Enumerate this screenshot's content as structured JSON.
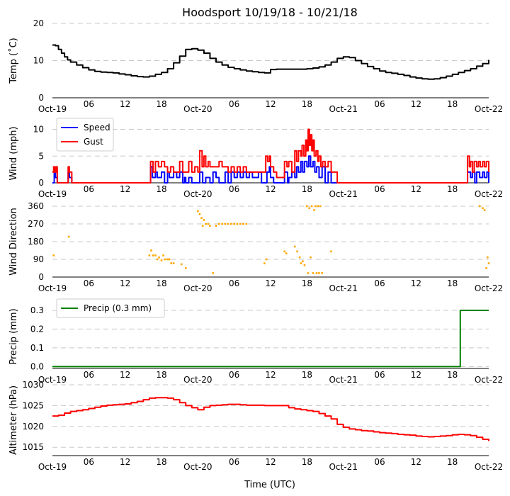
{
  "title": "Hoodsport 10/19/18 - 10/21/18",
  "xlabel": "Time (UTC)",
  "chart_data": [
    {
      "type": "line",
      "ylabel": "Temp (˚C)",
      "ylim": [
        0,
        20
      ],
      "yticks": [
        0,
        10,
        20
      ],
      "xlim": [
        0,
        72
      ],
      "xticks": [
        "Oct-19",
        "06",
        "12",
        "18",
        "Oct-20",
        "06",
        "12",
        "18",
        "Oct-21",
        "06",
        "12",
        "18",
        "Oct-22"
      ],
      "grid": true,
      "series": [
        {
          "color": "#000000",
          "step": true,
          "x": [
            0,
            0.5,
            1,
            1.5,
            2,
            2.5,
            3,
            4,
            5,
            6,
            7,
            8,
            9,
            10,
            11,
            12,
            13,
            14,
            15,
            16,
            17,
            18,
            19,
            20,
            21,
            22,
            23,
            24,
            25,
            26,
            27,
            28,
            29,
            30,
            31,
            32,
            33,
            34,
            35,
            36,
            37,
            38,
            39,
            40,
            41,
            42,
            43,
            44,
            45,
            46,
            47,
            48,
            49,
            50,
            51,
            52,
            53,
            54,
            55,
            56,
            57,
            58,
            59,
            60,
            61,
            62,
            63,
            64,
            65,
            66,
            67,
            68,
            69,
            70,
            71,
            72
          ],
          "y": [
            14.2,
            14,
            13,
            12,
            11,
            10.2,
            9.6,
            8.8,
            8.1,
            7.5,
            7.1,
            6.9,
            6.8,
            6.7,
            6.4,
            6.2,
            5.9,
            5.7,
            5.6,
            5.8,
            6.3,
            6.8,
            7.8,
            9.4,
            11.2,
            13.0,
            13.2,
            12.8,
            12.0,
            10.6,
            9.6,
            8.8,
            8.2,
            7.8,
            7.5,
            7.2,
            7.0,
            6.8,
            6.7,
            7.6,
            7.7,
            7.7,
            7.7,
            7.7,
            7.7,
            7.8,
            8.0,
            8.3,
            8.8,
            9.6,
            10.6,
            11.0,
            10.8,
            10.0,
            9.2,
            8.4,
            7.8,
            7.2,
            6.8,
            6.6,
            6.3,
            6.0,
            5.6,
            5.3,
            5.1,
            5.0,
            5.1,
            5.4,
            5.8,
            6.3,
            6.8,
            7.3,
            7.8,
            8.5,
            9.2,
            10.2
          ]
        }
      ]
    },
    {
      "type": "line",
      "ylabel": "Wind (mph)",
      "ylim": [
        0,
        11
      ],
      "yticks": [
        0,
        5,
        10
      ],
      "xlim": [
        0,
        72
      ],
      "xticks": [
        "Oct-19",
        "06",
        "12",
        "18",
        "Oct-20",
        "06",
        "12",
        "18",
        "Oct-21",
        "06",
        "12",
        "18",
        "Oct-22"
      ],
      "grid": true,
      "legend": "upper-left",
      "series": [
        {
          "name": "Speed",
          "color": "#0000ff",
          "step": true,
          "x": [
            0,
            0.3,
            0.5,
            0.8,
            2.6,
            2.8,
            3.2,
            16,
            16.2,
            16.5,
            17,
            17.3,
            18,
            18.5,
            19,
            19.3,
            20,
            20.5,
            21,
            21.5,
            21.8,
            22,
            22.5,
            23,
            23.5,
            24,
            24.3,
            24.8,
            25.3,
            26,
            26.5,
            27,
            27.5,
            28,
            28.5,
            29,
            29.5,
            30,
            30.5,
            31,
            31.5,
            32,
            32.5,
            33,
            33.5,
            34,
            34.5,
            35,
            35,
            35.4,
            35.8,
            36,
            36.5,
            37,
            38,
            38.3,
            38.8,
            39,
            39.5,
            40,
            40.3,
            40.6,
            41,
            41.3,
            41.6,
            42,
            42.3,
            42.6,
            43,
            43.3,
            43.6,
            44,
            44.5,
            45,
            45.5,
            46,
            46.5,
            47,
            47.3,
            48,
            68,
            68.5,
            69,
            69.3,
            69.7,
            70,
            70.5,
            71,
            71.3,
            71.7,
            72
          ],
          "y": [
            0,
            2,
            1,
            0,
            2,
            1,
            0,
            0,
            3,
            1,
            2,
            1,
            2,
            0,
            2,
            1,
            2,
            1,
            2,
            0,
            1,
            0,
            1,
            0,
            0,
            0,
            2,
            0,
            1,
            0,
            2,
            1,
            0,
            0,
            2,
            0,
            2,
            1,
            2,
            1,
            2,
            1,
            2,
            1,
            1,
            2,
            0,
            0,
            0,
            2,
            3,
            1,
            0,
            0,
            0,
            2,
            0,
            1,
            2,
            1,
            3,
            2,
            4,
            2,
            4,
            3,
            5,
            3,
            4,
            2,
            3,
            1,
            3,
            0,
            2,
            0,
            0,
            0,
            0,
            0,
            0,
            2,
            1,
            2,
            0,
            2,
            1,
            2,
            1,
            2,
            0
          ]
        },
        {
          "name": "Gust",
          "color": "#ff0000",
          "step": true,
          "x": [
            0,
            0.2,
            0.4,
            0.6,
            0.8,
            2.6,
            2.8,
            3.2,
            16,
            16.2,
            16.6,
            17,
            17.5,
            18,
            18.5,
            19,
            19.5,
            20,
            20.5,
            21,
            21.5,
            22,
            22.5,
            23,
            23.5,
            24,
            24.3,
            24.7,
            25,
            25.3,
            25.7,
            26,
            26.5,
            27,
            27.5,
            28,
            28.5,
            29,
            29.5,
            30,
            30.5,
            31,
            31.5,
            32,
            32.5,
            33,
            33.5,
            34,
            34.5,
            35,
            35.2,
            35.5,
            35.8,
            36,
            36.5,
            37,
            37.5,
            38,
            38.3,
            38.7,
            39,
            39.5,
            40,
            40.3,
            40.6,
            41,
            41.2,
            41.5,
            41.8,
            42,
            42.2,
            42.4,
            42.6,
            42.8,
            43,
            43.2,
            43.5,
            43.8,
            44,
            44.3,
            44.6,
            45,
            45.5,
            46,
            46.5,
            47,
            47.3,
            48,
            68,
            68.5,
            68.8,
            69,
            69.3,
            69.6,
            70,
            70.3,
            70.6,
            71,
            71.3,
            71.6,
            72
          ],
          "y": [
            2,
            3,
            2,
            3,
            0,
            3,
            2,
            0,
            0,
            4,
            2,
            4,
            3,
            4,
            3,
            2,
            3,
            2,
            2,
            4,
            2,
            2,
            4,
            2,
            3,
            2,
            6,
            3,
            5,
            3,
            4,
            3,
            3,
            3,
            4,
            3,
            3,
            2,
            3,
            2,
            3,
            2,
            3,
            2,
            2,
            2,
            2,
            2,
            2,
            2,
            5,
            4,
            5,
            3,
            2,
            1,
            1,
            1,
            4,
            3,
            4,
            2,
            6,
            4,
            6,
            5,
            7,
            5,
            8,
            6,
            10,
            7,
            9,
            6,
            8,
            5,
            6,
            4,
            5,
            3,
            4,
            3,
            4,
            2,
            2,
            0,
            0,
            0,
            0,
            5,
            3,
            4,
            2,
            4,
            3,
            4,
            3,
            4,
            3,
            4,
            2
          ]
        }
      ]
    },
    {
      "type": "scatter",
      "ylabel": "Wind Direction",
      "ylim": [
        0,
        360
      ],
      "yticks": [
        0,
        90,
        180,
        270,
        360
      ],
      "xlim": [
        0,
        72
      ],
      "xticks": [
        "Oct-19",
        "06",
        "12",
        "18",
        "Oct-20",
        "06",
        "12",
        "18",
        "Oct-21",
        "06",
        "12",
        "18",
        "Oct-22"
      ],
      "grid": true,
      "series": [
        {
          "color": "#ffa500",
          "x": [
            0.2,
            2.7,
            16,
            16.3,
            16.6,
            17,
            17.3,
            17.6,
            18,
            18.3,
            18.6,
            19,
            19.3,
            19.6,
            20,
            21.3,
            22,
            24,
            24.3,
            24.6,
            24.8,
            25,
            25.3,
            25.7,
            26,
            26.5,
            27,
            27.5,
            28,
            28.5,
            29,
            29.5,
            30,
            30.5,
            31,
            31.5,
            32,
            35,
            35.3,
            38.3,
            38.6,
            40,
            40.4,
            40.8,
            41,
            41.3,
            41.6,
            42,
            42.2,
            42.4,
            42.6,
            42.8,
            43,
            43.2,
            43.4,
            43.6,
            43.8,
            44,
            44.2,
            44.5,
            46,
            70.5,
            71,
            71.3,
            71.6,
            71.8,
            72
          ],
          "y": [
            110,
            205,
            110,
            135,
            110,
            110,
            90,
            100,
            85,
            110,
            90,
            90,
            90,
            70,
            70,
            65,
            45,
            335,
            320,
            300,
            260,
            290,
            270,
            270,
            260,
            20,
            260,
            270,
            270,
            270,
            270,
            270,
            270,
            270,
            270,
            270,
            270,
            70,
            90,
            130,
            120,
            155,
            130,
            100,
            70,
            80,
            60,
            360,
            20,
            350,
            100,
            360,
            20,
            340,
            360,
            20,
            360,
            20,
            360,
            20,
            130,
            360,
            350,
            340,
            45,
            100,
            70
          ]
        }
      ]
    },
    {
      "type": "line",
      "ylabel": "Precip (mm)",
      "ylim": [
        -0.01,
        0.33
      ],
      "yticks": [
        0.0,
        0.1,
        0.2,
        0.3
      ],
      "xlim": [
        0,
        72
      ],
      "xticks": [
        "Oct-19",
        "06",
        "12",
        "18",
        "Oct-20",
        "06",
        "12",
        "18",
        "Oct-21",
        "06",
        "12",
        "18",
        "Oct-22"
      ],
      "grid": true,
      "legend": "upper-left",
      "series": [
        {
          "name": "Precip (0.3 mm)",
          "color": "#008000",
          "step": true,
          "x": [
            0,
            67.3,
            67.3,
            72
          ],
          "y": [
            0,
            0,
            0.3,
            0.3
          ]
        }
      ]
    },
    {
      "type": "line",
      "ylabel": "Altimeter (hPa)",
      "ylim": [
        1013,
        1030
      ],
      "yticks": [
        1015,
        1020,
        1025,
        1030
      ],
      "xlim": [
        0,
        72
      ],
      "xticks": [
        "Oct-19",
        "06",
        "12",
        "18",
        "Oct-20",
        "06",
        "12",
        "18",
        "Oct-21",
        "06",
        "12",
        "18",
        "Oct-22"
      ],
      "grid": true,
      "series": [
        {
          "color": "#ff0000",
          "step": true,
          "x": [
            0,
            1,
            2,
            3,
            4,
            5,
            6,
            7,
            8,
            9,
            10,
            11,
            12,
            13,
            14,
            15,
            16,
            17,
            18,
            19,
            20,
            21,
            22,
            23,
            24,
            25,
            26,
            27,
            28,
            29,
            30,
            31,
            32,
            33,
            34,
            35,
            36,
            37,
            38,
            39,
            40,
            41,
            42,
            43,
            44,
            45,
            46,
            47,
            48,
            49,
            50,
            51,
            52,
            53,
            54,
            55,
            56,
            57,
            58,
            59,
            60,
            61,
            62,
            63,
            64,
            65,
            66,
            67,
            68,
            69,
            70,
            71,
            72
          ],
          "y": [
            1022.5,
            1022.7,
            1023.2,
            1023.6,
            1023.8,
            1024.0,
            1024.3,
            1024.6,
            1024.9,
            1025.1,
            1025.2,
            1025.3,
            1025.4,
            1025.7,
            1026.0,
            1026.4,
            1026.8,
            1026.9,
            1026.9,
            1026.8,
            1026.4,
            1025.7,
            1025.0,
            1024.5,
            1024.0,
            1024.6,
            1025.0,
            1025.1,
            1025.2,
            1025.3,
            1025.3,
            1025.2,
            1025.1,
            1025.1,
            1025.1,
            1025.0,
            1025.0,
            1025.0,
            1025.0,
            1024.5,
            1024.2,
            1024.0,
            1023.8,
            1023.6,
            1023.1,
            1022.5,
            1021.8,
            1020.5,
            1019.8,
            1019.4,
            1019.2,
            1019.0,
            1018.9,
            1018.7,
            1018.5,
            1018.4,
            1018.3,
            1018.1,
            1018.0,
            1017.9,
            1017.7,
            1017.6,
            1017.5,
            1017.6,
            1017.7,
            1017.8,
            1018.0,
            1018.1,
            1018.0,
            1017.8,
            1017.4,
            1016.9,
            1016.5
          ]
        }
      ]
    }
  ]
}
